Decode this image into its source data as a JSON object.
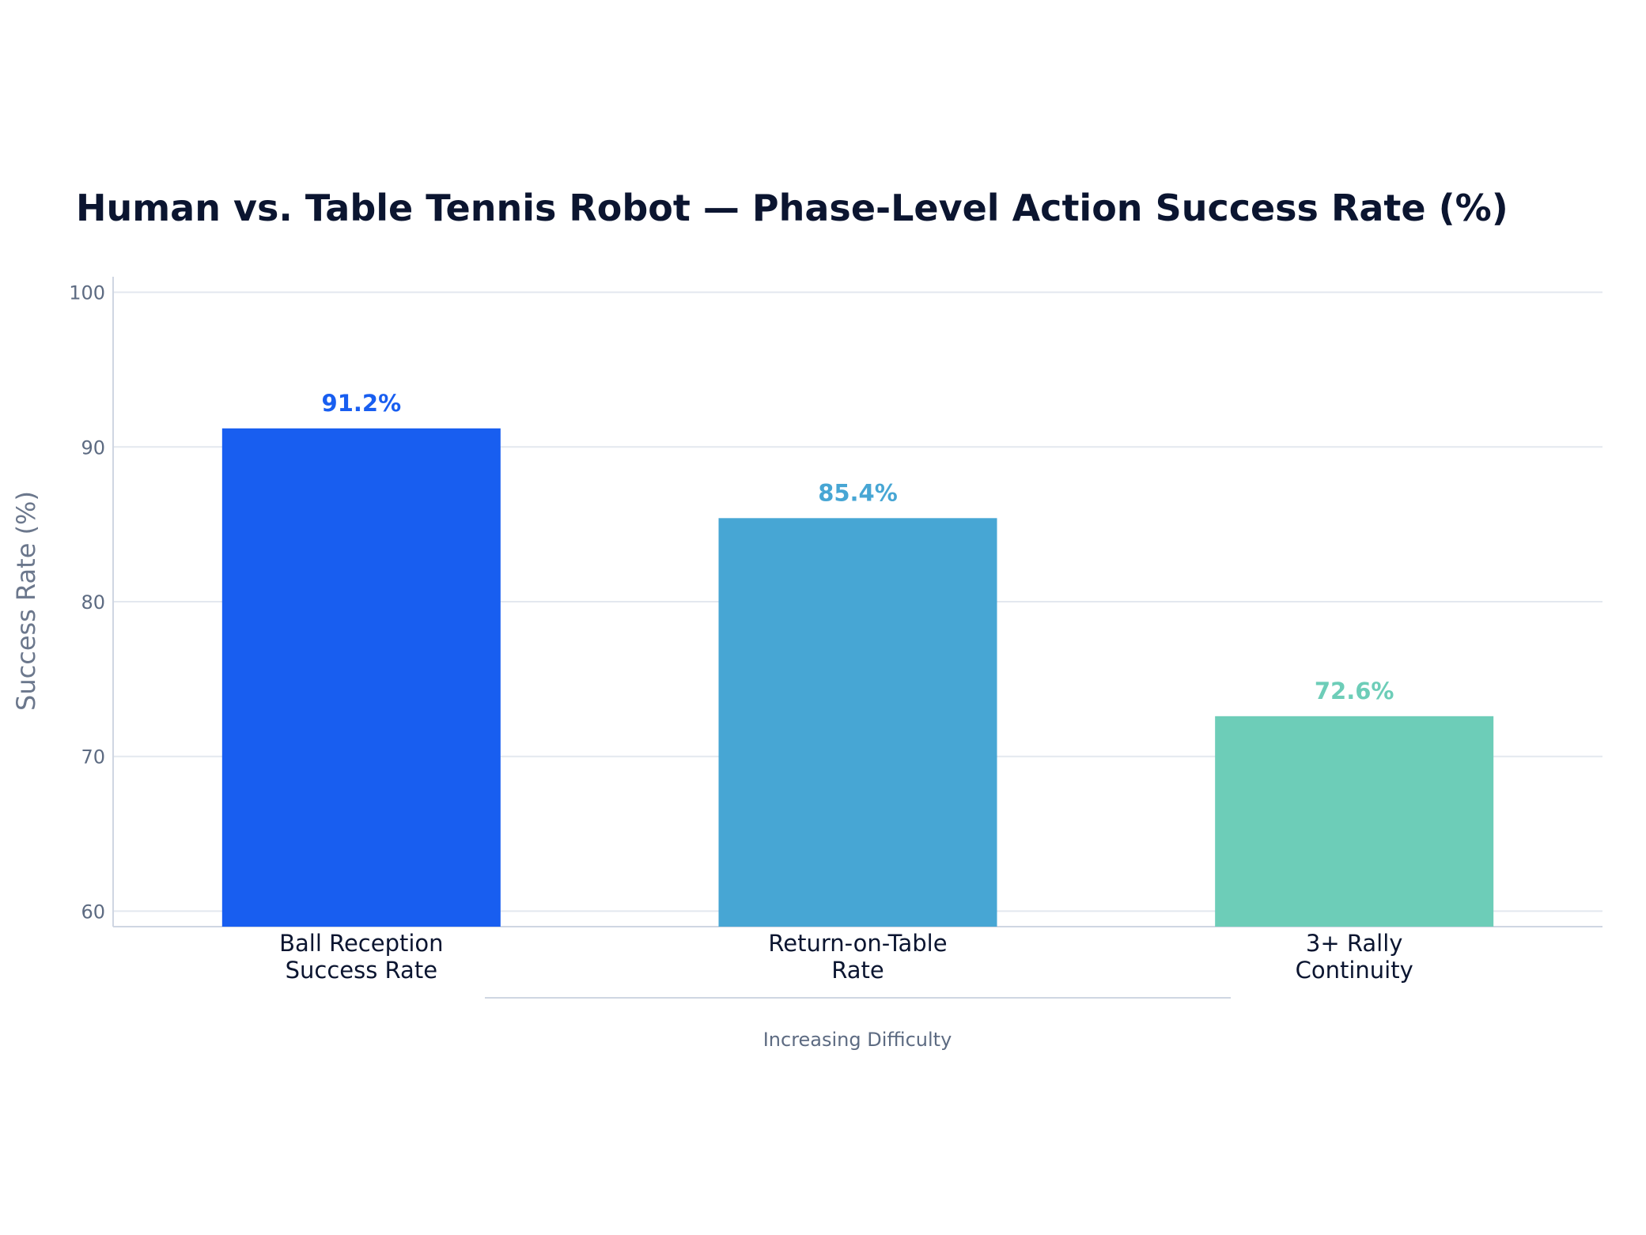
{
  "chart_data": {
    "type": "bar",
    "title": "Human vs. Table Tennis Robot — Phase-Level Action Success Rate (%)",
    "xlabel": "",
    "ylabel": "Success Rate (%)",
    "ylim": [
      59,
      101
    ],
    "yticks": [
      60,
      70,
      80,
      90,
      100
    ],
    "grid": true,
    "categories": [
      [
        "Ball Reception",
        "Success Rate"
      ],
      [
        "Return-on-Table",
        "Rate"
      ],
      [
        "3+ Rally",
        "Continuity"
      ]
    ],
    "values": [
      91.2,
      85.4,
      72.6
    ],
    "value_labels": [
      "91.2%",
      "85.4%",
      "72.6%"
    ],
    "colors": [
      "#185ef0",
      "#47a6d4",
      "#6dcdb8"
    ],
    "annotation": "Increasing Difficulty"
  }
}
